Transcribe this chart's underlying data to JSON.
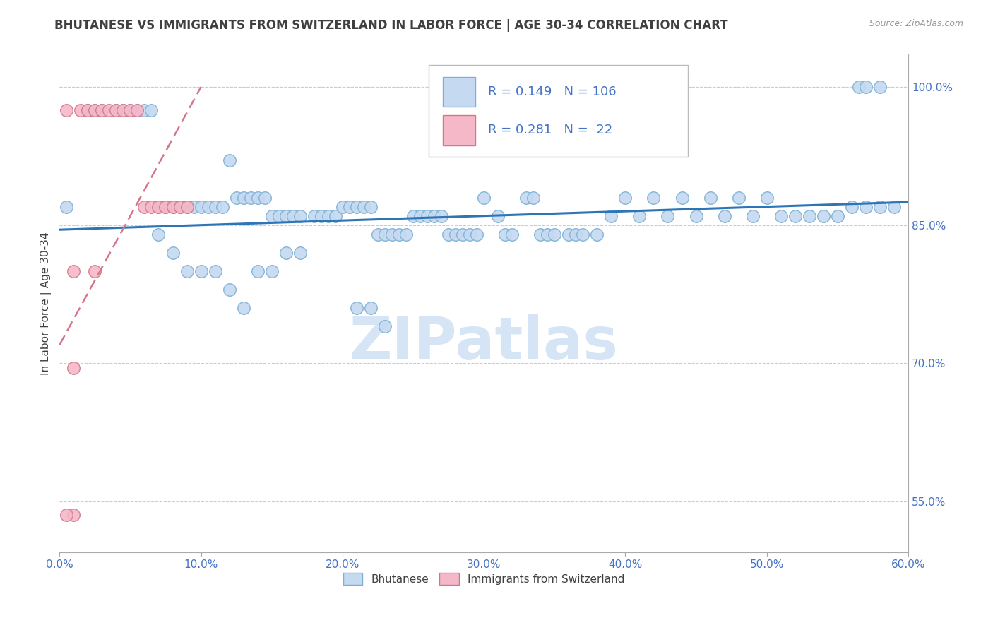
{
  "title": "BHUTANESE VS IMMIGRANTS FROM SWITZERLAND IN LABOR FORCE | AGE 30-34 CORRELATION CHART",
  "source": "Source: ZipAtlas.com",
  "ylabel_left": "In Labor Force | Age 30-34",
  "legend_label1": "Bhutanese",
  "legend_label2": "Immigrants from Switzerland",
  "R1": 0.149,
  "N1": 106,
  "R2": 0.281,
  "N2": 22,
  "x_min": 0.0,
  "x_max": 0.6,
  "y_min": 0.495,
  "y_max": 1.035,
  "x_tick_labels": [
    "0.0%",
    "10.0%",
    "20.0%",
    "30.0%",
    "40.0%",
    "50.0%",
    "60.0%"
  ],
  "x_ticks": [
    0.0,
    0.1,
    0.2,
    0.3,
    0.4,
    0.5,
    0.6
  ],
  "right_y_labels": [
    "100.0%",
    "85.0%",
    "70.0%",
    "55.0%"
  ],
  "right_y_ticks": [
    1.0,
    0.85,
    0.7,
    0.55
  ],
  "color_blue": "#C5D9F1",
  "color_blue_edge": "#7BAFD4",
  "color_blue_line": "#2E75B6",
  "color_pink": "#F4B8C8",
  "color_pink_edge": "#D4768A",
  "color_pink_line": "#D4768A",
  "color_title": "#404040",
  "color_axis_labels": "#4472C4",
  "color_watermark": "#D5E5F5",
  "background_color": "#FFFFFF",
  "blue_x": [
    0.005,
    0.02,
    0.025,
    0.03,
    0.04,
    0.045,
    0.05,
    0.055,
    0.06,
    0.065,
    0.07,
    0.075,
    0.08,
    0.085,
    0.09,
    0.095,
    0.1,
    0.105,
    0.11,
    0.115,
    0.12,
    0.125,
    0.13,
    0.135,
    0.14,
    0.145,
    0.15,
    0.155,
    0.16,
    0.165,
    0.17,
    0.18,
    0.185,
    0.19,
    0.195,
    0.2,
    0.205,
    0.21,
    0.215,
    0.22,
    0.225,
    0.23,
    0.235,
    0.24,
    0.245,
    0.25,
    0.255,
    0.26,
    0.265,
    0.27,
    0.275,
    0.28,
    0.285,
    0.29,
    0.295,
    0.3,
    0.31,
    0.315,
    0.32,
    0.33,
    0.335,
    0.34,
    0.345,
    0.35,
    0.36,
    0.365,
    0.37,
    0.38,
    0.39,
    0.4,
    0.41,
    0.42,
    0.43,
    0.44,
    0.45,
    0.46,
    0.47,
    0.48,
    0.49,
    0.5,
    0.51,
    0.52,
    0.53,
    0.54,
    0.55,
    0.56,
    0.57,
    0.58,
    0.59,
    0.07,
    0.08,
    0.09,
    0.1,
    0.11,
    0.12,
    0.13,
    0.565,
    0.57,
    0.58,
    0.21,
    0.22,
    0.23,
    0.14,
    0.15,
    0.16,
    0.17
  ],
  "blue_y": [
    0.87,
    0.975,
    0.975,
    0.975,
    0.975,
    0.975,
    0.975,
    0.975,
    0.975,
    0.975,
    0.87,
    0.87,
    0.87,
    0.87,
    0.87,
    0.87,
    0.87,
    0.87,
    0.87,
    0.87,
    0.92,
    0.88,
    0.88,
    0.88,
    0.88,
    0.88,
    0.86,
    0.86,
    0.86,
    0.86,
    0.86,
    0.86,
    0.86,
    0.86,
    0.86,
    0.87,
    0.87,
    0.87,
    0.87,
    0.87,
    0.84,
    0.84,
    0.84,
    0.84,
    0.84,
    0.86,
    0.86,
    0.86,
    0.86,
    0.86,
    0.84,
    0.84,
    0.84,
    0.84,
    0.84,
    0.88,
    0.86,
    0.84,
    0.84,
    0.88,
    0.88,
    0.84,
    0.84,
    0.84,
    0.84,
    0.84,
    0.84,
    0.84,
    0.86,
    0.88,
    0.86,
    0.88,
    0.86,
    0.88,
    0.86,
    0.88,
    0.86,
    0.88,
    0.86,
    0.88,
    0.86,
    0.86,
    0.86,
    0.86,
    0.86,
    0.87,
    0.87,
    0.87,
    0.87,
    0.84,
    0.82,
    0.8,
    0.8,
    0.8,
    0.78,
    0.76,
    1.0,
    1.0,
    1.0,
    0.76,
    0.76,
    0.74,
    0.8,
    0.8,
    0.82,
    0.82
  ],
  "pink_x": [
    0.005,
    0.015,
    0.02,
    0.025,
    0.03,
    0.035,
    0.04,
    0.045,
    0.05,
    0.055,
    0.06,
    0.065,
    0.07,
    0.075,
    0.08,
    0.085,
    0.09,
    0.01,
    0.01,
    0.01,
    0.005,
    0.025
  ],
  "pink_y": [
    0.975,
    0.975,
    0.975,
    0.975,
    0.975,
    0.975,
    0.975,
    0.975,
    0.975,
    0.975,
    0.87,
    0.87,
    0.87,
    0.87,
    0.87,
    0.87,
    0.87,
    0.8,
    0.695,
    0.535,
    0.535,
    0.8
  ],
  "blue_trend_x": [
    0.0,
    0.6
  ],
  "blue_trend_y": [
    0.845,
    0.875
  ],
  "pink_trend_x": [
    0.0,
    0.1
  ],
  "pink_trend_y": [
    0.72,
    1.0
  ]
}
